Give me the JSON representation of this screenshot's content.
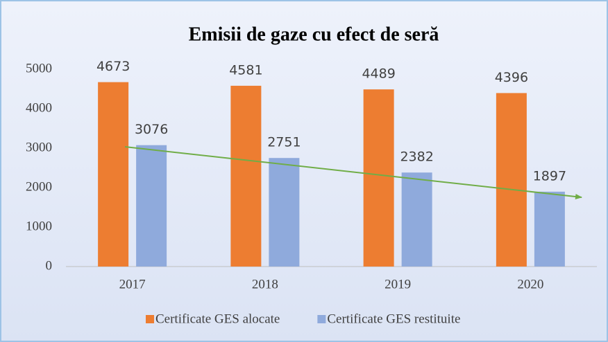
{
  "chart_data": {
    "type": "bar",
    "title": "Emisii de gaze cu efect de seră",
    "categories": [
      "2017",
      "2018",
      "2019",
      "2020"
    ],
    "series": [
      {
        "name": "Certificate GES alocate",
        "color": "#ed7d31",
        "values": [
          4673,
          4581,
          4489,
          4396
        ]
      },
      {
        "name": "Certificate GES restituite",
        "color": "#8faadc",
        "values": [
          3076,
          2751,
          2382,
          1897
        ]
      }
    ],
    "ylim": [
      0,
      5000
    ],
    "yticks": [
      0,
      1000,
      2000,
      3000,
      4000,
      5000
    ],
    "grid": false
  }
}
